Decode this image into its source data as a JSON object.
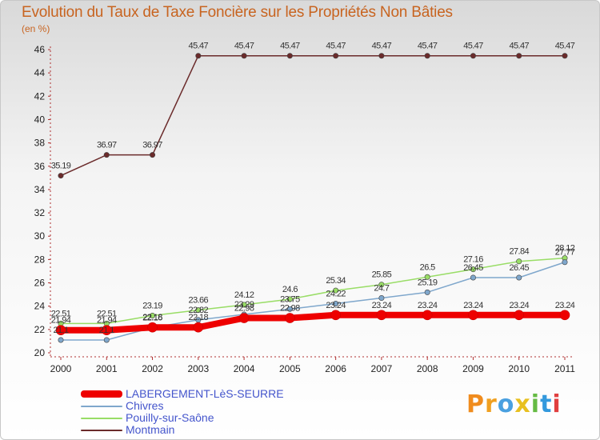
{
  "chart_data": {
    "type": "line",
    "title": "Evolution du Taux de Taxe Foncière sur les Propriétés Non Bâties",
    "ylabel": "(en %)",
    "xlabel": "",
    "ylim": [
      20,
      46
    ],
    "yticks": [
      "20",
      "22",
      "24",
      "26",
      "28",
      "30",
      "32",
      "34",
      "36",
      "38",
      "40",
      "42",
      "44",
      "46"
    ],
    "categories": [
      "2000",
      "2001",
      "2002",
      "2003",
      "2004",
      "2005",
      "2006",
      "2007",
      "2008",
      "2009",
      "2010",
      "2011"
    ],
    "series": [
      {
        "name": "LABERGEMENT-LèS-SEURRE",
        "color": "#ee0000",
        "values": [
          21.94,
          21.94,
          22.18,
          22.18,
          22.98,
          22.98,
          23.24,
          23.24,
          23.24,
          23.24,
          23.24,
          23.24
        ],
        "labels": [
          "21.94",
          "21.94",
          "22.18",
          "22.18",
          "22.98",
          "22.98",
          "23.24",
          "23.24",
          "23.24",
          "23.24",
          "23.24",
          "23.24"
        ]
      },
      {
        "name": "Chivres",
        "color": "#7fa7cc",
        "values": [
          21.1,
          21.1,
          22.16,
          22.82,
          23.29,
          23.75,
          24.22,
          24.7,
          25.19,
          26.45,
          26.45,
          27.77
        ],
        "labels": [
          "21.1",
          "21.1",
          "22.16",
          "22.82",
          "23.29",
          "23.75",
          "24.22",
          "24.7",
          "25.19",
          "26.45",
          "26.45",
          "27.77"
        ]
      },
      {
        "name": "Pouilly-sur-Saône",
        "color": "#99dd66",
        "values": [
          22.51,
          22.51,
          23.19,
          23.66,
          24.12,
          24.6,
          25.34,
          25.85,
          26.5,
          27.16,
          27.84,
          28.12
        ],
        "labels": [
          "22.51",
          "22.51",
          "23.19",
          "23.66",
          "24.12",
          "24.6",
          "25.34",
          "25.85",
          "26.5",
          "27.16",
          "27.84",
          "28.12"
        ]
      },
      {
        "name": "Montmain",
        "color": "#6b2b2b",
        "values": [
          35.19,
          36.97,
          36.97,
          45.47,
          45.47,
          45.47,
          45.47,
          45.47,
          45.47,
          45.47,
          45.47,
          45.47
        ],
        "labels": [
          "35.19",
          "36.97",
          "36.97",
          "45.47",
          "45.47",
          "45.47",
          "45.47",
          "45.47",
          "45.47",
          "45.47",
          "45.47",
          "45.47"
        ]
      }
    ]
  },
  "logo_text": "Proxiti"
}
